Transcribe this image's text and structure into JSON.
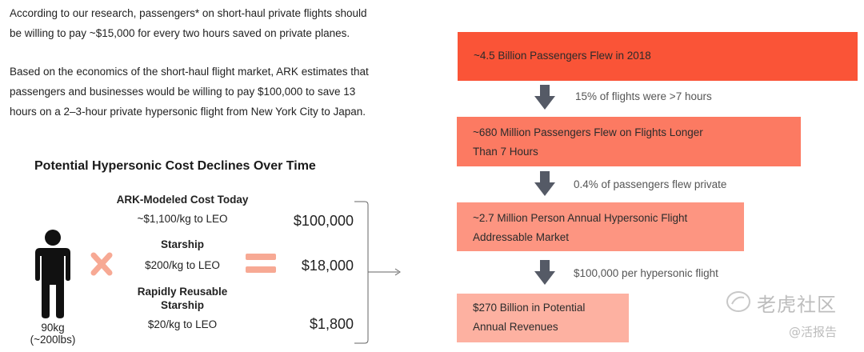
{
  "intro": {
    "p1_line1": "According to our research, passengers* on short-haul private flights should",
    "p1_line2": "be willing to pay ~$15,000 for every two hours saved on private planes.",
    "p2_line1": "Based on the economics of the short-haul flight market, ARK estimates that",
    "p2_line2": "passengers and businesses would be willing to pay $100,000 to save 13",
    "p2_line3": "hours on a 2–3-hour private hypersonic flight from New York City to Japan."
  },
  "cost_panel": {
    "title": "Potential Hypersonic Cost Declines Over Time",
    "person_weight": "90kg",
    "person_weight_lbs": "(~200lbs)",
    "rows": [
      {
        "name": "ARK-Modeled Cost Today",
        "cost": "~$1,100/kg to LEO",
        "value": "$100,000"
      },
      {
        "name": "Starship",
        "cost": "$200/kg to LEO",
        "value": "$18,000"
      },
      {
        "name_line1": "Rapidly Reusable",
        "name_line2": "Starship",
        "cost": "$20/kg to LEO",
        "value": "$1,800"
      }
    ]
  },
  "funnel": {
    "colors": [
      "#fa5437",
      "#fc7a62",
      "#fd9581",
      "#fdb1a1"
    ],
    "steps": [
      {
        "line1": "~4.5 Billion Passengers Flew in 2018"
      },
      {
        "line1": "~680 Million Passengers Flew on Flights Longer",
        "line2": "Than 7 Hours"
      },
      {
        "line1": "~2.7 Million Person Annual Hypersonic Flight",
        "line2": "Addressable Market"
      },
      {
        "line1": "$270 Billion in Potential",
        "line2": "Annual Revenues"
      }
    ],
    "transitions": [
      "15% of flights were >7 hours",
      "0.4% of passengers flew private",
      "$100,000 per hypersonic flight"
    ]
  },
  "watermark": {
    "brand": "老虎社区",
    "handle": "@活报告"
  }
}
